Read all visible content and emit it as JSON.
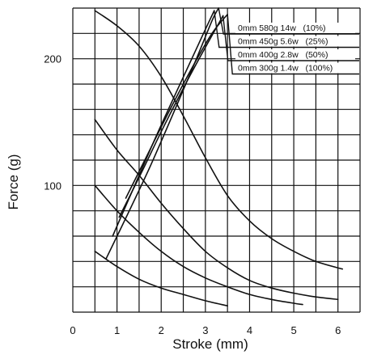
{
  "chart_data": {
    "type": "line",
    "xlabel": "Stroke (mm)",
    "ylabel": "Force (g)",
    "xlim": [
      0,
      6.5
    ],
    "ylim": [
      0,
      240
    ],
    "x_ticks": [
      0,
      1,
      2,
      3,
      4,
      5,
      6
    ],
    "y_ticks": [
      100,
      200
    ],
    "grid": true,
    "legend_position": "top-right",
    "series": [
      {
        "name": "0mm 580g 14w   (10%)",
        "force_stroke": [
          [
            0.5,
            238
          ],
          [
            1.0,
            226
          ],
          [
            1.5,
            210
          ],
          [
            2.0,
            186
          ],
          [
            2.5,
            155
          ],
          [
            3.0,
            122
          ],
          [
            3.5,
            92
          ],
          [
            4.0,
            72
          ],
          [
            4.5,
            58
          ],
          [
            5.0,
            48
          ],
          [
            5.5,
            40
          ],
          [
            6.1,
            34
          ]
        ],
        "load_line": [
          [
            0.75,
            42
          ],
          [
            1.25,
            78
          ],
          [
            1.75,
            115
          ],
          [
            2.25,
            155
          ],
          [
            2.75,
            196
          ],
          [
            3.15,
            230
          ],
          [
            3.3,
            240
          ]
        ]
      },
      {
        "name": "0mm 450g 5.6w   (25%)",
        "force_stroke": [
          [
            0.5,
            152
          ],
          [
            1.0,
            128
          ],
          [
            1.5,
            108
          ],
          [
            2.0,
            86
          ],
          [
            2.5,
            66
          ],
          [
            3.0,
            48
          ],
          [
            3.5,
            35
          ],
          [
            4.0,
            25
          ],
          [
            4.5,
            19
          ],
          [
            5.0,
            15
          ],
          [
            5.5,
            12
          ],
          [
            6.0,
            10
          ]
        ],
        "load_line": [
          [
            0.9,
            60
          ],
          [
            1.4,
            100
          ],
          [
            1.9,
            140
          ],
          [
            2.4,
            178
          ],
          [
            2.85,
            212
          ],
          [
            3.2,
            238
          ]
        ]
      },
      {
        "name": "0mm 400g 2.8w   (50%)",
        "force_stroke": [
          [
            0.5,
            100
          ],
          [
            1.0,
            80
          ],
          [
            1.5,
            63
          ],
          [
            2.0,
            48
          ],
          [
            2.5,
            36
          ],
          [
            3.0,
            27
          ],
          [
            3.5,
            20
          ],
          [
            4.0,
            14
          ],
          [
            4.5,
            10
          ],
          [
            5.0,
            7
          ],
          [
            5.2,
            6
          ]
        ],
        "load_line": [
          [
            1.05,
            75
          ],
          [
            1.55,
            110
          ],
          [
            2.05,
            146
          ],
          [
            2.55,
            180
          ],
          [
            3.0,
            209
          ],
          [
            3.4,
            234
          ]
        ]
      },
      {
        "name": "0mm 300g 1.4w   (100%)",
        "force_stroke": [
          [
            0.5,
            48
          ],
          [
            1.0,
            36
          ],
          [
            1.5,
            26
          ],
          [
            2.0,
            19
          ],
          [
            2.5,
            14
          ],
          [
            3.0,
            9
          ],
          [
            3.5,
            5
          ]
        ],
        "load_line": [
          [
            1.2,
            90
          ],
          [
            1.7,
            125
          ],
          [
            2.2,
            160
          ],
          [
            2.7,
            193
          ],
          [
            3.15,
            220
          ],
          [
            3.5,
            235
          ]
        ]
      }
    ]
  }
}
